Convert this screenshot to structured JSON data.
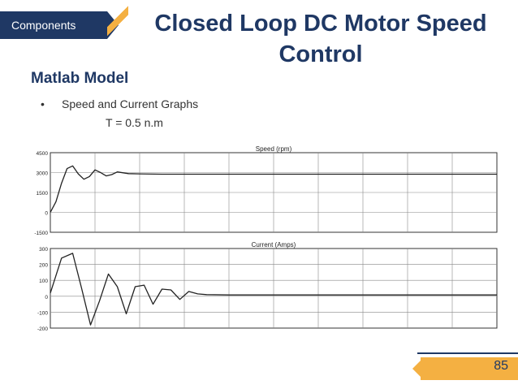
{
  "section_tag": "Components",
  "title": "Closed Loop DC Motor Speed Control",
  "subtitle": "Matlab Model",
  "bullet": "Speed and Current Graphs",
  "torque": "T = 0.5 n.m",
  "page_number": "85",
  "colors": {
    "navy": "#1f3864",
    "accent": "#f4b042"
  },
  "chart_data": [
    {
      "type": "line",
      "title": "Speed (rpm)",
      "ylim": [
        -1500,
        4500
      ],
      "yticks": [
        "4500",
        "3000",
        "1500",
        "0",
        "-1500"
      ],
      "x": [
        0,
        0.25,
        0.5,
        0.75,
        1,
        1.25,
        1.5,
        1.75,
        2,
        2.25,
        2.5,
        2.75,
        3,
        3.5,
        4,
        5,
        6,
        8,
        10,
        12,
        14,
        16,
        18,
        20
      ],
      "values": [
        0,
        800,
        2200,
        3300,
        3500,
        2900,
        2500,
        2700,
        3200,
        3000,
        2750,
        2850,
        3050,
        2920,
        2900,
        2880,
        2880,
        2880,
        2880,
        2880,
        2880,
        2880,
        2880,
        2880
      ],
      "grid": true
    },
    {
      "type": "line",
      "title": "Current (Amps)",
      "ylim": [
        -200,
        300
      ],
      "yticks": [
        "300",
        "200",
        "100",
        "0",
        "-100",
        "-200"
      ],
      "x": [
        0,
        0.5,
        1,
        1.4,
        1.8,
        2.2,
        2.6,
        3,
        3.4,
        3.8,
        4.2,
        4.6,
        5,
        5.4,
        5.8,
        6.2,
        6.6,
        7,
        8,
        10,
        12,
        14,
        16,
        18,
        20
      ],
      "values": [
        20,
        240,
        270,
        50,
        -180,
        -30,
        140,
        60,
        -110,
        60,
        70,
        -50,
        45,
        40,
        -20,
        30,
        15,
        10,
        8,
        8,
        8,
        8,
        8,
        8,
        8
      ],
      "grid": true
    }
  ]
}
